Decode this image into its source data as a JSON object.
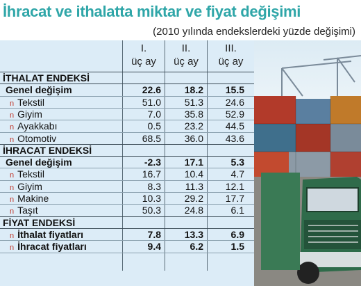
{
  "title": "İhracat ve ithalatta miktar ve fiyat değişimi",
  "subtitle": "(2010 yılında endekslerdeki yüzde değişimi)",
  "columns": [
    {
      "line1": "I.",
      "line2": "üç ay"
    },
    {
      "line1": "II.",
      "line2": "üç ay"
    },
    {
      "line1": "III.",
      "line2": "üç ay"
    }
  ],
  "rows": [
    {
      "kind": "section",
      "label": "İTHALAT ENDEKSİ"
    },
    {
      "kind": "bold",
      "label": "Genel değişim",
      "values": [
        "22.6",
        "18.2",
        "15.5"
      ]
    },
    {
      "kind": "sub",
      "label": "Tekstil",
      "values": [
        "51.0",
        "51.3",
        "24.6"
      ]
    },
    {
      "kind": "sub",
      "label": "Giyim",
      "values": [
        "7.0",
        "35.8",
        "52.9"
      ]
    },
    {
      "kind": "sub",
      "label": "Ayakkabı",
      "values": [
        "0.5",
        "23.2",
        "44.5"
      ]
    },
    {
      "kind": "sub",
      "label": "Otomotiv",
      "values": [
        "68.5",
        "36.0",
        "43.6"
      ]
    },
    {
      "kind": "section",
      "label": "İHRACAT ENDEKSİ"
    },
    {
      "kind": "bold",
      "label": "Genel değişim",
      "values": [
        "-2.3",
        "17.1",
        "5.3"
      ]
    },
    {
      "kind": "sub",
      "label": "Tekstil",
      "values": [
        "16.7",
        "10.4",
        "4.7"
      ]
    },
    {
      "kind": "sub",
      "label": "Giyim",
      "values": [
        "8.3",
        "11.3",
        "12.1"
      ]
    },
    {
      "kind": "sub",
      "label": "Makine",
      "values": [
        "10.3",
        "29.2",
        "17.7"
      ]
    },
    {
      "kind": "sub",
      "label": "Taşıt",
      "values": [
        "50.3",
        "24.8",
        "6.1"
      ]
    },
    {
      "kind": "section",
      "label": "FİYAT ENDEKSİ"
    },
    {
      "kind": "subbold",
      "label": "İthalat fiyatları",
      "values": [
        "7.8",
        "13.3",
        "6.9"
      ]
    },
    {
      "kind": "subbold",
      "label": "İhracat fiyatları",
      "values": [
        "9.4",
        "6.2",
        "1.5"
      ]
    }
  ],
  "bullet_glyph": "n",
  "colors": {
    "title": "#2fa6a8",
    "table_bg": "#dcecf7",
    "bullet": "#c0392b",
    "truck": "#2f6b4a"
  }
}
